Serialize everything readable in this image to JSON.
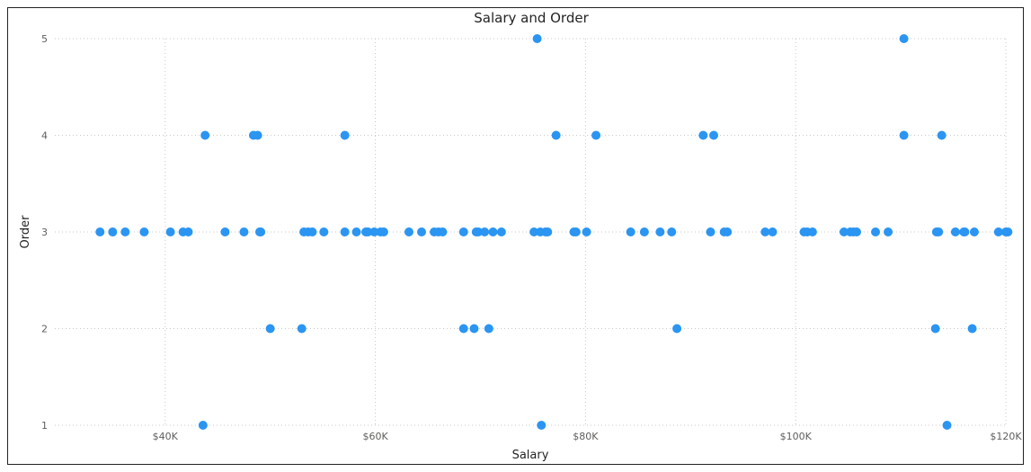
{
  "chart_data": {
    "type": "scatter",
    "title": "Salary and Order",
    "xlabel": "Salary",
    "ylabel": "Order",
    "xlim": [
      29500,
      120000
    ],
    "ylim": [
      1,
      5
    ],
    "xticks": [
      {
        "value": 40000,
        "label": "$40K"
      },
      {
        "value": 60000,
        "label": "$60K"
      },
      {
        "value": 80000,
        "label": "$80K"
      },
      {
        "value": 100000,
        "label": "$100K"
      },
      {
        "value": 120000,
        "label": "$120K"
      }
    ],
    "yticks": [
      {
        "value": 1,
        "label": "1"
      },
      {
        "value": 2,
        "label": "2"
      },
      {
        "value": 3,
        "label": "3"
      },
      {
        "value": 4,
        "label": "4"
      },
      {
        "value": 5,
        "label": "5"
      }
    ],
    "grid": true,
    "color": "#2b95f2",
    "points": [
      {
        "x": 33800,
        "y": 3
      },
      {
        "x": 35000,
        "y": 3
      },
      {
        "x": 36200,
        "y": 3
      },
      {
        "x": 38000,
        "y": 3
      },
      {
        "x": 40500,
        "y": 3
      },
      {
        "x": 41700,
        "y": 3
      },
      {
        "x": 42200,
        "y": 3
      },
      {
        "x": 45700,
        "y": 3
      },
      {
        "x": 47500,
        "y": 3
      },
      {
        "x": 49000,
        "y": 3
      },
      {
        "x": 49100,
        "y": 3
      },
      {
        "x": 53200,
        "y": 3
      },
      {
        "x": 53600,
        "y": 3
      },
      {
        "x": 54000,
        "y": 3
      },
      {
        "x": 55100,
        "y": 3
      },
      {
        "x": 57100,
        "y": 3
      },
      {
        "x": 58200,
        "y": 3
      },
      {
        "x": 59100,
        "y": 3
      },
      {
        "x": 59300,
        "y": 3
      },
      {
        "x": 59900,
        "y": 3
      },
      {
        "x": 60500,
        "y": 3
      },
      {
        "x": 60800,
        "y": 3
      },
      {
        "x": 63200,
        "y": 3
      },
      {
        "x": 64400,
        "y": 3
      },
      {
        "x": 65600,
        "y": 3
      },
      {
        "x": 66000,
        "y": 3
      },
      {
        "x": 66400,
        "y": 3
      },
      {
        "x": 68400,
        "y": 3
      },
      {
        "x": 69600,
        "y": 3
      },
      {
        "x": 69800,
        "y": 3
      },
      {
        "x": 70400,
        "y": 3
      },
      {
        "x": 71200,
        "y": 3
      },
      {
        "x": 72000,
        "y": 3
      },
      {
        "x": 75100,
        "y": 3
      },
      {
        "x": 75700,
        "y": 3
      },
      {
        "x": 76200,
        "y": 3
      },
      {
        "x": 76400,
        "y": 3
      },
      {
        "x": 78900,
        "y": 3
      },
      {
        "x": 79100,
        "y": 3
      },
      {
        "x": 80100,
        "y": 3
      },
      {
        "x": 84300,
        "y": 3
      },
      {
        "x": 85600,
        "y": 3
      },
      {
        "x": 87100,
        "y": 3
      },
      {
        "x": 88200,
        "y": 3
      },
      {
        "x": 91900,
        "y": 3
      },
      {
        "x": 93200,
        "y": 3
      },
      {
        "x": 93500,
        "y": 3
      },
      {
        "x": 97100,
        "y": 3
      },
      {
        "x": 97800,
        "y": 3
      },
      {
        "x": 100800,
        "y": 3
      },
      {
        "x": 101100,
        "y": 3
      },
      {
        "x": 101600,
        "y": 3
      },
      {
        "x": 104600,
        "y": 3
      },
      {
        "x": 105200,
        "y": 3
      },
      {
        "x": 105500,
        "y": 3
      },
      {
        "x": 105800,
        "y": 3
      },
      {
        "x": 107600,
        "y": 3
      },
      {
        "x": 108800,
        "y": 3
      },
      {
        "x": 113400,
        "y": 3
      },
      {
        "x": 113600,
        "y": 3
      },
      {
        "x": 115200,
        "y": 3
      },
      {
        "x": 116000,
        "y": 3
      },
      {
        "x": 116100,
        "y": 3
      },
      {
        "x": 117000,
        "y": 3
      },
      {
        "x": 119300,
        "y": 3
      },
      {
        "x": 120000,
        "y": 3
      },
      {
        "x": 120200,
        "y": 3
      },
      {
        "x": 43800,
        "y": 4
      },
      {
        "x": 48400,
        "y": 4
      },
      {
        "x": 48800,
        "y": 4
      },
      {
        "x": 57100,
        "y": 4
      },
      {
        "x": 77200,
        "y": 4
      },
      {
        "x": 81000,
        "y": 4
      },
      {
        "x": 91200,
        "y": 4
      },
      {
        "x": 92200,
        "y": 4
      },
      {
        "x": 110300,
        "y": 4
      },
      {
        "x": 113900,
        "y": 4
      },
      {
        "x": 75400,
        "y": 5
      },
      {
        "x": 110300,
        "y": 5
      },
      {
        "x": 50000,
        "y": 2
      },
      {
        "x": 53000,
        "y": 2
      },
      {
        "x": 68400,
        "y": 2
      },
      {
        "x": 69400,
        "y": 2
      },
      {
        "x": 70800,
        "y": 2
      },
      {
        "x": 88700,
        "y": 2
      },
      {
        "x": 113300,
        "y": 2
      },
      {
        "x": 116800,
        "y": 2
      },
      {
        "x": 43600,
        "y": 1
      },
      {
        "x": 75800,
        "y": 1
      },
      {
        "x": 114400,
        "y": 1
      }
    ]
  }
}
